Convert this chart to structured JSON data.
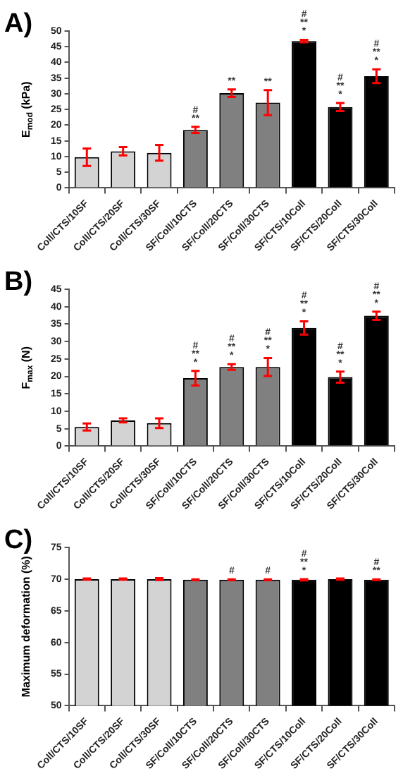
{
  "chart_data": [
    {
      "type": "bar",
      "title": "A)",
      "ylabel": "E$_{mod}$ (kPa)",
      "categories": [
        "Coll/CTS/10SF",
        "Coll/CTS/20SF",
        "Coll/CTS/30SF",
        "SF/Coll/10CTS",
        "SF/Coll/20CTS",
        "SF/Coll/30CTS",
        "SF/CTS/10Coll",
        "SF/CTS/20Coll",
        "SF/CTS/30Coll"
      ],
      "values": [
        9.8,
        11.7,
        11.2,
        18.5,
        30.2,
        27.2,
        46.8,
        25.8,
        35.6
      ],
      "errors": [
        2.8,
        1.3,
        2.5,
        1,
        1.2,
        4,
        0.4,
        1.3,
        2.2
      ],
      "value_labels": [
        null,
        null,
        null,
        "#\n**",
        "**",
        "**",
        "#\n**\n*",
        "#\n**\n*",
        "#\n**\n*"
      ],
      "colors": [
        "#d3d3d3",
        "#d3d3d3",
        "#d3d3d3",
        "#808080",
        "#808080",
        "#808080",
        "#000000",
        "#000000",
        "#000000"
      ],
      "ylim": [
        0,
        50
      ],
      "yticks": [
        0,
        5,
        10,
        15,
        20,
        25,
        30,
        35,
        40,
        45,
        50
      ]
    },
    {
      "type": "bar",
      "title": "B)",
      "ylabel": "F$_{max}$ (N)",
      "categories": [
        "Coll/CTS/10SF",
        "Coll/CTS/20SF",
        "Coll/CTS/30SF",
        "SF/Coll/10CTS",
        "SF/Coll/20CTS",
        "SF/Coll/30CTS",
        "SF/CTS/10Coll",
        "SF/CTS/20Coll",
        "SF/CTS/30Coll"
      ],
      "values": [
        5.5,
        7.4,
        6.6,
        19.5,
        22.7,
        22.7,
        33.9,
        19.8,
        37.4
      ],
      "errors": [
        1,
        0.6,
        1.4,
        2.1,
        0.8,
        2.6,
        1.9,
        1.6,
        1.2
      ],
      "value_labels": [
        null,
        null,
        null,
        "#\n**\n*",
        "#\n**\n*",
        "#\n**\n*",
        "#\n**\n*",
        "#\n**\n*",
        "#\n**\n*"
      ],
      "colors": [
        "#d3d3d3",
        "#d3d3d3",
        "#d3d3d3",
        "#808080",
        "#808080",
        "#808080",
        "#000000",
        "#000000",
        "#000000"
      ],
      "ylim": [
        0,
        45
      ],
      "yticks": [
        0,
        5,
        10,
        15,
        20,
        25,
        30,
        35,
        40,
        45
      ]
    },
    {
      "type": "bar",
      "title": "C)",
      "ylabel": "Maximum deformation (%)",
      "categories": [
        "Coll/CTS/10SF",
        "Coll/CTS/20SF",
        "Coll/CTS/30SF",
        "SF/Coll/10CTS",
        "SF/Coll/20CTS",
        "SF/Coll/30CTS",
        "SF/CTS/10Coll",
        "SF/CTS/20Coll",
        "SF/CTS/30Coll"
      ],
      "values": [
        70,
        70,
        70,
        69.9,
        69.9,
        69.9,
        69.9,
        70,
        69.9
      ],
      "errors": [
        0.1,
        0.1,
        0.15,
        0.05,
        0.05,
        0.05,
        0.1,
        0.1,
        0.05
      ],
      "value_labels": [
        null,
        null,
        null,
        null,
        "#",
        "#",
        "#\n**\n*",
        null,
        "#\n**"
      ],
      "colors": [
        "#d3d3d3",
        "#d3d3d3",
        "#d3d3d3",
        "#808080",
        "#808080",
        "#808080",
        "#000000",
        "#000000",
        "#000000"
      ],
      "ylim": [
        50,
        75
      ],
      "yticks": [
        50,
        55,
        60,
        65,
        70,
        75
      ]
    }
  ]
}
